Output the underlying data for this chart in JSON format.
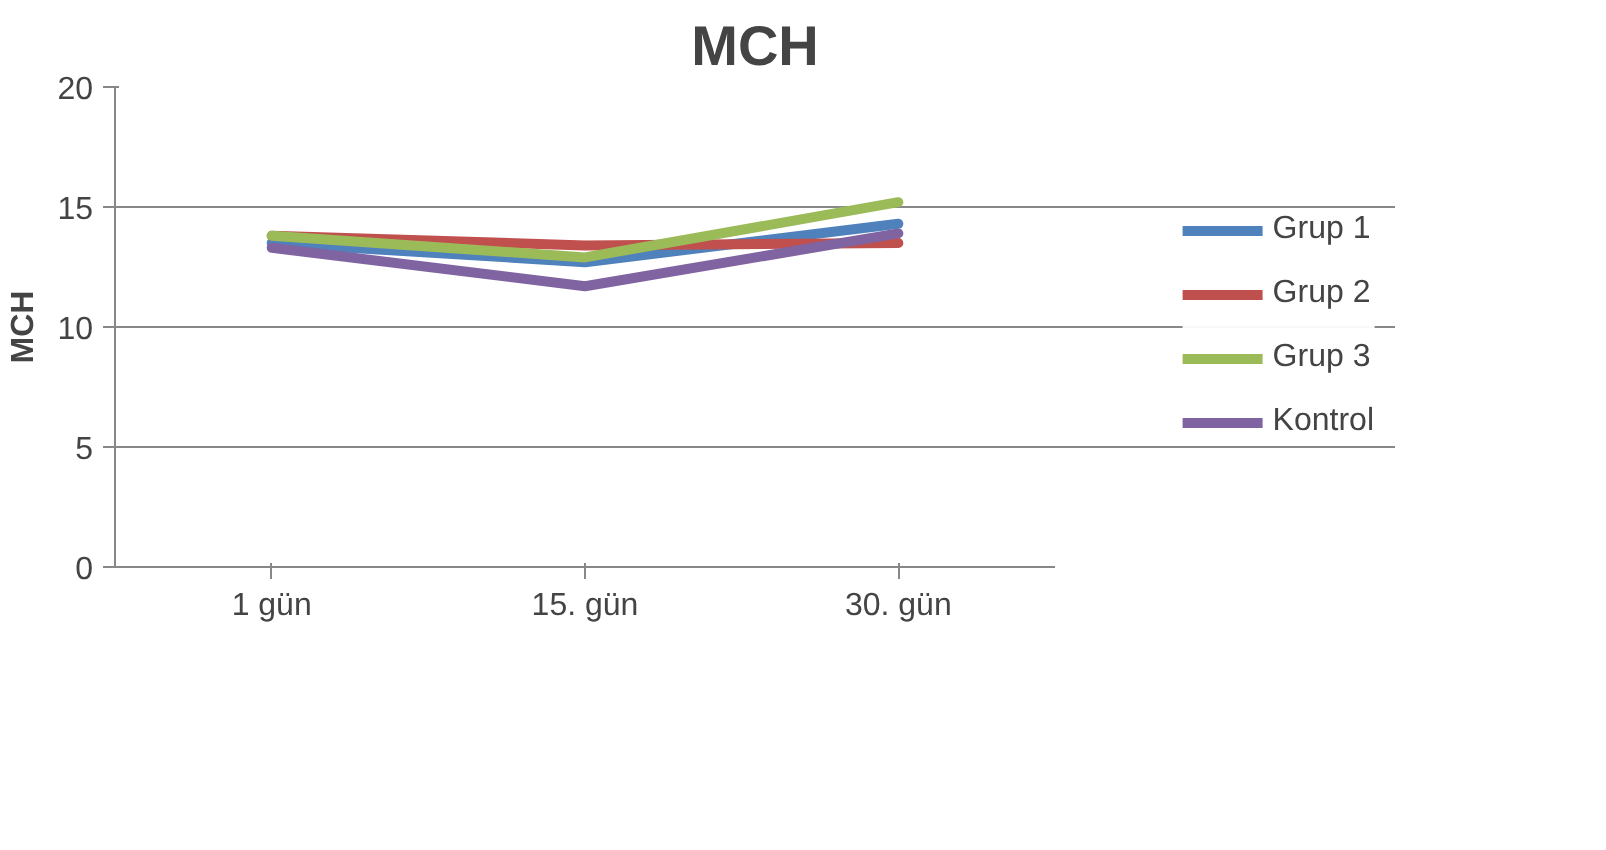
{
  "chart_data": {
    "type": "line",
    "title": "MCH",
    "ylabel": "MCH",
    "categories": [
      "1 gün",
      "15. gün",
      "30. gün"
    ],
    "series": [
      {
        "name": "Grup 1",
        "color": "#4f81bd",
        "values": [
          13.5,
          12.7,
          14.3
        ]
      },
      {
        "name": "Grup 2",
        "color": "#c0504d",
        "values": [
          13.8,
          13.4,
          13.5
        ]
      },
      {
        "name": "Grup 3",
        "color": "#9bbb59",
        "values": [
          13.8,
          12.9,
          15.2
        ]
      },
      {
        "name": "Kontrol",
        "color": "#8064a2",
        "values": [
          13.3,
          11.7,
          13.9
        ]
      }
    ],
    "ylim": [
      0,
      20
    ],
    "yticks": [
      0,
      5,
      10,
      15,
      20
    ],
    "grid": "y",
    "legend": "right",
    "marker": "none",
    "line_style": "solid"
  }
}
